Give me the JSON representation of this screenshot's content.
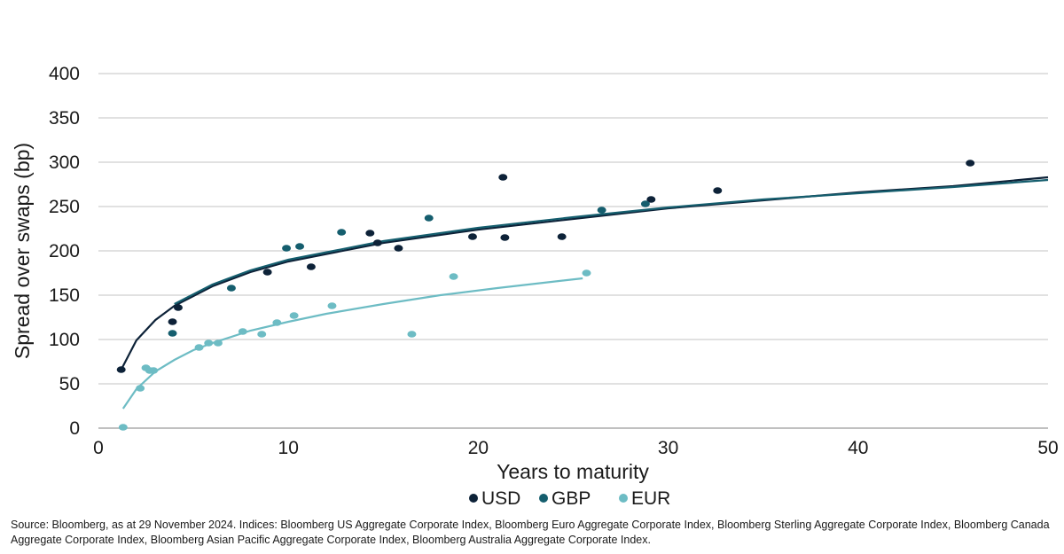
{
  "chart_data": {
    "type": "scatter",
    "title": "",
    "xlabel": "Years to maturity",
    "ylabel": "Spread over swaps (bp)",
    "xlim": [
      0,
      50
    ],
    "ylim": [
      0,
      400
    ],
    "x_ticks": [
      "0",
      "10",
      "20",
      "30",
      "40",
      "50"
    ],
    "y_ticks": [
      "0",
      "50",
      "100",
      "150",
      "200",
      "250",
      "300",
      "350",
      "400"
    ],
    "grid": "horizontal",
    "legend_position": "bottom-center",
    "series": [
      {
        "name": "USD",
        "color": "#0d2238",
        "points": [
          [
            1.2,
            66
          ],
          [
            3.9,
            120
          ],
          [
            4.2,
            136
          ],
          [
            8.9,
            176
          ],
          [
            11.2,
            182
          ],
          [
            14.3,
            220
          ],
          [
            14.7,
            209
          ],
          [
            15.8,
            203
          ],
          [
            19.7,
            216
          ],
          [
            21.3,
            283
          ],
          [
            21.4,
            215
          ],
          [
            24.4,
            216
          ],
          [
            29.1,
            258
          ],
          [
            32.6,
            268
          ],
          [
            45.9,
            299
          ]
        ],
        "trend": [
          [
            1.2,
            66
          ],
          [
            2,
            99
          ],
          [
            3,
            122
          ],
          [
            4,
            138
          ],
          [
            6,
            160
          ],
          [
            8,
            176
          ],
          [
            10,
            188
          ],
          [
            15,
            209
          ],
          [
            20,
            224
          ],
          [
            25,
            236
          ],
          [
            30,
            248
          ],
          [
            35,
            257
          ],
          [
            40,
            266
          ],
          [
            45,
            273
          ],
          [
            50,
            283
          ]
        ]
      },
      {
        "name": "GBP",
        "color": "#155e6e",
        "points": [
          [
            3.9,
            107
          ],
          [
            7.0,
            158
          ],
          [
            9.9,
            203
          ],
          [
            10.6,
            205
          ],
          [
            12.8,
            221
          ],
          [
            17.4,
            237
          ],
          [
            26.5,
            246
          ],
          [
            28.8,
            253
          ]
        ],
        "trend": [
          [
            4.0,
            140
          ],
          [
            6,
            162
          ],
          [
            8,
            178
          ],
          [
            10,
            190
          ],
          [
            15,
            211
          ],
          [
            20,
            226
          ],
          [
            25,
            238
          ],
          [
            30,
            249
          ],
          [
            35,
            258
          ],
          [
            40,
            265
          ],
          [
            45,
            272
          ],
          [
            50,
            280
          ]
        ]
      },
      {
        "name": "EUR",
        "color": "#6dbcc4",
        "points": [
          [
            1.3,
            1
          ],
          [
            2.2,
            45
          ],
          [
            2.5,
            68
          ],
          [
            2.7,
            65
          ],
          [
            2.9,
            65
          ],
          [
            5.3,
            91
          ],
          [
            5.8,
            96
          ],
          [
            6.3,
            96
          ],
          [
            7.6,
            109
          ],
          [
            8.6,
            106
          ],
          [
            9.4,
            119
          ],
          [
            10.3,
            127
          ],
          [
            12.3,
            138
          ],
          [
            16.5,
            106
          ],
          [
            18.7,
            171
          ],
          [
            25.7,
            175
          ]
        ],
        "trend": [
          [
            1.3,
            22
          ],
          [
            2,
            44
          ],
          [
            3,
            64
          ],
          [
            4,
            77
          ],
          [
            5,
            88
          ],
          [
            6,
            96
          ],
          [
            8,
            110
          ],
          [
            10,
            120
          ],
          [
            12,
            129
          ],
          [
            15,
            140
          ],
          [
            18,
            150
          ],
          [
            21,
            158
          ],
          [
            25.5,
            169
          ]
        ]
      }
    ]
  },
  "source_note": "Source: Bloomberg, as at 29 November 2024. Indices: Bloomberg US Aggregate Corporate Index, Bloomberg Euro Aggregate Corporate Index, Bloomberg Sterling Aggregate Corporate Index, Bloomberg Canada Aggregate Corporate Index, Bloomberg Asian Pacific Aggregate Corporate Index, Bloomberg Australia Aggregate Corporate Index."
}
